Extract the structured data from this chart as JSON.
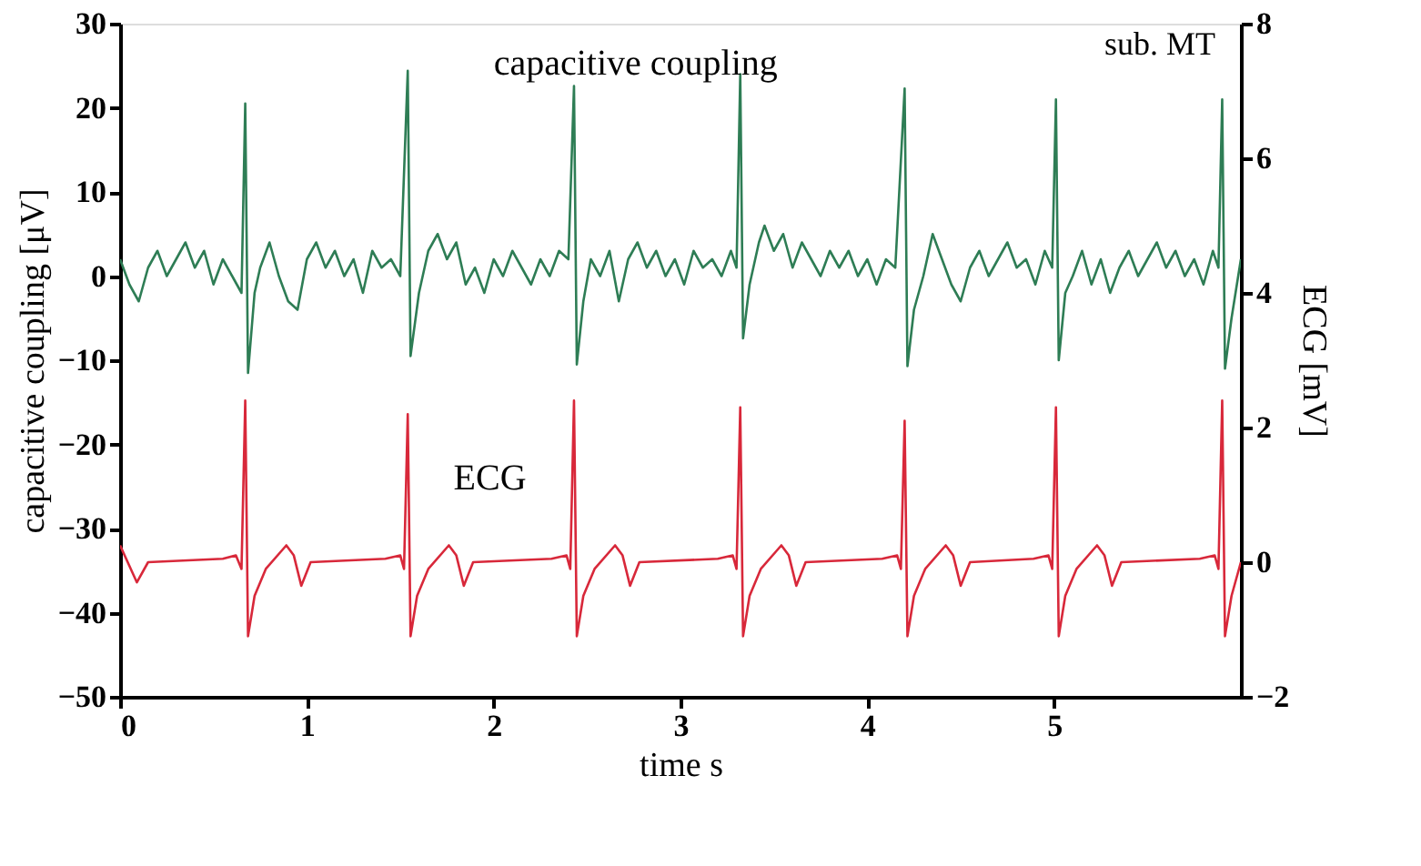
{
  "chart_data": {
    "type": "line",
    "xlabel": "time    s",
    "ylabel": "capacitive coupling [μV]",
    "y2label": "ECG [mV]",
    "annotations": [
      "sub. MT"
    ],
    "xlim": [
      0,
      6
    ],
    "xticks": [
      0,
      1,
      2,
      3,
      4,
      5
    ],
    "ylim": [
      -50,
      30
    ],
    "yticks": [
      -50,
      -40,
      -30,
      -20,
      -10,
      0,
      10,
      20,
      30
    ],
    "y2lim": [
      -2,
      8
    ],
    "y2ticks": [
      -2,
      0,
      2,
      4,
      6,
      8
    ],
    "grid": false,
    "marker": "none",
    "line_style": "solid",
    "series": [
      {
        "name": "capacitive coupling",
        "color": "#2e7d55",
        "axis": "y",
        "x": [
          0,
          0.05,
          0.1,
          0.15,
          0.2,
          0.25,
          0.3,
          0.35,
          0.4,
          0.45,
          0.5,
          0.55,
          0.6,
          0.65,
          0.67,
          0.685,
          0.72,
          0.75,
          0.8,
          0.85,
          0.9,
          0.95,
          1.0,
          1.05,
          1.1,
          1.15,
          1.2,
          1.25,
          1.3,
          1.35,
          1.4,
          1.45,
          1.5,
          1.54,
          1.555,
          1.6,
          1.65,
          1.7,
          1.75,
          1.8,
          1.85,
          1.9,
          1.95,
          2.0,
          2.05,
          2.1,
          2.15,
          2.2,
          2.25,
          2.3,
          2.35,
          2.4,
          2.43,
          2.445,
          2.48,
          2.52,
          2.57,
          2.62,
          2.67,
          2.72,
          2.77,
          2.82,
          2.87,
          2.92,
          2.97,
          3.02,
          3.07,
          3.12,
          3.17,
          3.22,
          3.27,
          3.3,
          3.32,
          3.335,
          3.37,
          3.42,
          3.45,
          3.5,
          3.55,
          3.6,
          3.65,
          3.7,
          3.75,
          3.8,
          3.85,
          3.9,
          3.95,
          4.0,
          4.05,
          4.1,
          4.15,
          4.2,
          4.215,
          4.25,
          4.3,
          4.35,
          4.4,
          4.45,
          4.5,
          4.55,
          4.6,
          4.65,
          4.7,
          4.75,
          4.8,
          4.85,
          4.9,
          4.95,
          4.99,
          5.01,
          5.025,
          5.06,
          5.1,
          5.15,
          5.2,
          5.25,
          5.3,
          5.35,
          5.4,
          5.45,
          5.5,
          5.55,
          5.6,
          5.65,
          5.7,
          5.75,
          5.8,
          5.85,
          5.88,
          5.9,
          5.915,
          5.95,
          6.0
        ],
        "values": [
          2,
          -1,
          -3,
          1,
          3,
          0,
          2,
          4,
          1,
          3,
          -1,
          2,
          0,
          -2,
          20.5,
          -11.5,
          -2,
          1,
          4,
          0,
          -3,
          -4,
          2,
          4,
          1,
          3,
          0,
          2,
          -2,
          3,
          1,
          2,
          0,
          24.4,
          -9.5,
          -2,
          3,
          5,
          2,
          4,
          -1,
          1,
          -2,
          2,
          0,
          3,
          1,
          -1,
          2,
          0,
          3,
          2,
          22.6,
          -10.5,
          -3,
          2,
          0,
          3,
          -3,
          2,
          4,
          1,
          3,
          0,
          2,
          -1,
          3,
          1,
          2,
          0,
          3,
          1,
          24,
          -7.4,
          -1,
          4,
          6,
          3,
          5,
          1,
          4,
          2,
          0,
          3,
          1,
          3,
          0,
          2,
          -1,
          2,
          1,
          22.3,
          -10.7,
          -4,
          0,
          5,
          2,
          -1,
          -3,
          1,
          3,
          0,
          2,
          4,
          1,
          2,
          -1,
          3,
          1,
          21,
          -10,
          -2,
          0,
          3,
          -1,
          2,
          -2,
          1,
          3,
          0,
          2,
          4,
          1,
          3,
          0,
          2,
          -1,
          3,
          1,
          21,
          -11,
          -5,
          2
        ]
      },
      {
        "name": "ECG",
        "color": "#d8283a",
        "axis": "y2",
        "x": [
          0,
          0.09,
          0.15,
          0.55,
          0.62,
          0.65,
          0.67,
          0.685,
          0.72,
          0.78,
          0.89,
          0.93,
          0.97,
          1.02,
          1.42,
          1.5,
          1.52,
          1.54,
          1.555,
          1.59,
          1.65,
          1.76,
          1.8,
          1.84,
          1.89,
          2.31,
          2.39,
          2.41,
          2.43,
          2.445,
          2.48,
          2.54,
          2.65,
          2.69,
          2.73,
          2.78,
          3.2,
          3.28,
          3.3,
          3.32,
          3.335,
          3.37,
          3.43,
          3.54,
          3.58,
          3.62,
          3.67,
          4.08,
          4.16,
          4.18,
          4.2,
          4.215,
          4.25,
          4.31,
          4.42,
          4.46,
          4.5,
          4.55,
          4.89,
          4.97,
          4.99,
          5.01,
          5.025,
          5.06,
          5.12,
          5.23,
          5.27,
          5.31,
          5.36,
          5.78,
          5.86,
          5.88,
          5.9,
          5.915,
          5.95,
          6.0
        ],
        "values": [
          0.25,
          -0.3,
          0,
          0.05,
          0.1,
          -0.1,
          2.4,
          -1.1,
          -0.5,
          -0.1,
          0.25,
          0.1,
          -0.35,
          0,
          0.05,
          0.1,
          -0.1,
          2.2,
          -1.1,
          -0.5,
          -0.1,
          0.25,
          0.1,
          -0.35,
          0,
          0.05,
          0.1,
          -0.1,
          2.4,
          -1.1,
          -0.5,
          -0.1,
          0.25,
          0.1,
          -0.35,
          0,
          0.05,
          0.1,
          -0.1,
          2.3,
          -1.1,
          -0.5,
          -0.1,
          0.25,
          0.1,
          -0.35,
          0,
          0.05,
          0.1,
          -0.1,
          2.1,
          -1.1,
          -0.5,
          -0.1,
          0.25,
          0.1,
          -0.35,
          0,
          0.05,
          0.1,
          -0.1,
          2.3,
          -1.1,
          -0.5,
          -0.1,
          0.25,
          0.1,
          -0.35,
          0,
          0.05,
          0.1,
          -0.1,
          2.4,
          -1.1,
          -0.5,
          0
        ]
      }
    ]
  }
}
